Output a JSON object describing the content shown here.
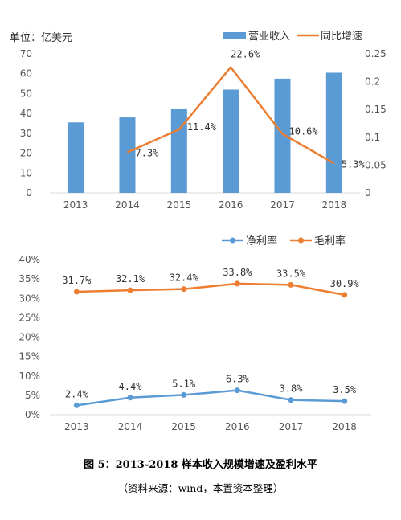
{
  "figure": {
    "caption": "图 5：2013-2018 样本收入规模增速及盈利水平",
    "source": "（资料来源：wind，本置资本整理）"
  },
  "chart_data": [
    {
      "type": "bar",
      "unit_label": "单位：亿美元",
      "categories": [
        "2013",
        "2014",
        "2015",
        "2016",
        "2017",
        "2018"
      ],
      "y_left": {
        "min": 0,
        "max": 70,
        "ticks": [
          "0",
          "10",
          "20",
          "30",
          "40",
          "50",
          "60",
          "70"
        ]
      },
      "y_right": {
        "min": 0,
        "max": 0.25,
        "ticks": [
          "0",
          "0.05",
          "0.1",
          "0.15",
          "0.2",
          "0.25"
        ]
      },
      "series": [
        {
          "name": "营业收入",
          "type": "bar",
          "axis": "left",
          "color": "#5B9BD5",
          "values": [
            35.5,
            38,
            42.5,
            52,
            57.5,
            60.5
          ]
        },
        {
          "name": "同比增速",
          "type": "line",
          "axis": "right",
          "color": "#ED7D31",
          "values": [
            null,
            0.073,
            0.114,
            0.226,
            0.106,
            0.053
          ],
          "labels": [
            "",
            "7.3%",
            "11.4%",
            "22.6%",
            "10.6%",
            "5.3%"
          ]
        }
      ],
      "legend": "top-right",
      "grid": false
    },
    {
      "type": "line",
      "categories": [
        "2013",
        "2014",
        "2015",
        "2016",
        "2017",
        "2018"
      ],
      "y": {
        "min": 0,
        "max": 40,
        "ticks": [
          "0%",
          "5%",
          "10%",
          "15%",
          "20%",
          "25%",
          "30%",
          "35%",
          "40%"
        ]
      },
      "series": [
        {
          "name": "净利率",
          "color": "#5B9BD5",
          "values": [
            2.4,
            4.4,
            5.1,
            6.3,
            3.8,
            3.5
          ],
          "labels": [
            "2.4%",
            "4.4%",
            "5.1%",
            "6.3%",
            "3.8%",
            "3.5%"
          ]
        },
        {
          "name": "毛利率",
          "color": "#ED7D31",
          "values": [
            31.7,
            32.1,
            32.4,
            33.8,
            33.5,
            30.9
          ],
          "labels": [
            "31.7%",
            "32.1%",
            "32.4%",
            "33.8%",
            "33.5%",
            "30.9%"
          ]
        }
      ],
      "legend": "top-right",
      "grid": false
    }
  ]
}
